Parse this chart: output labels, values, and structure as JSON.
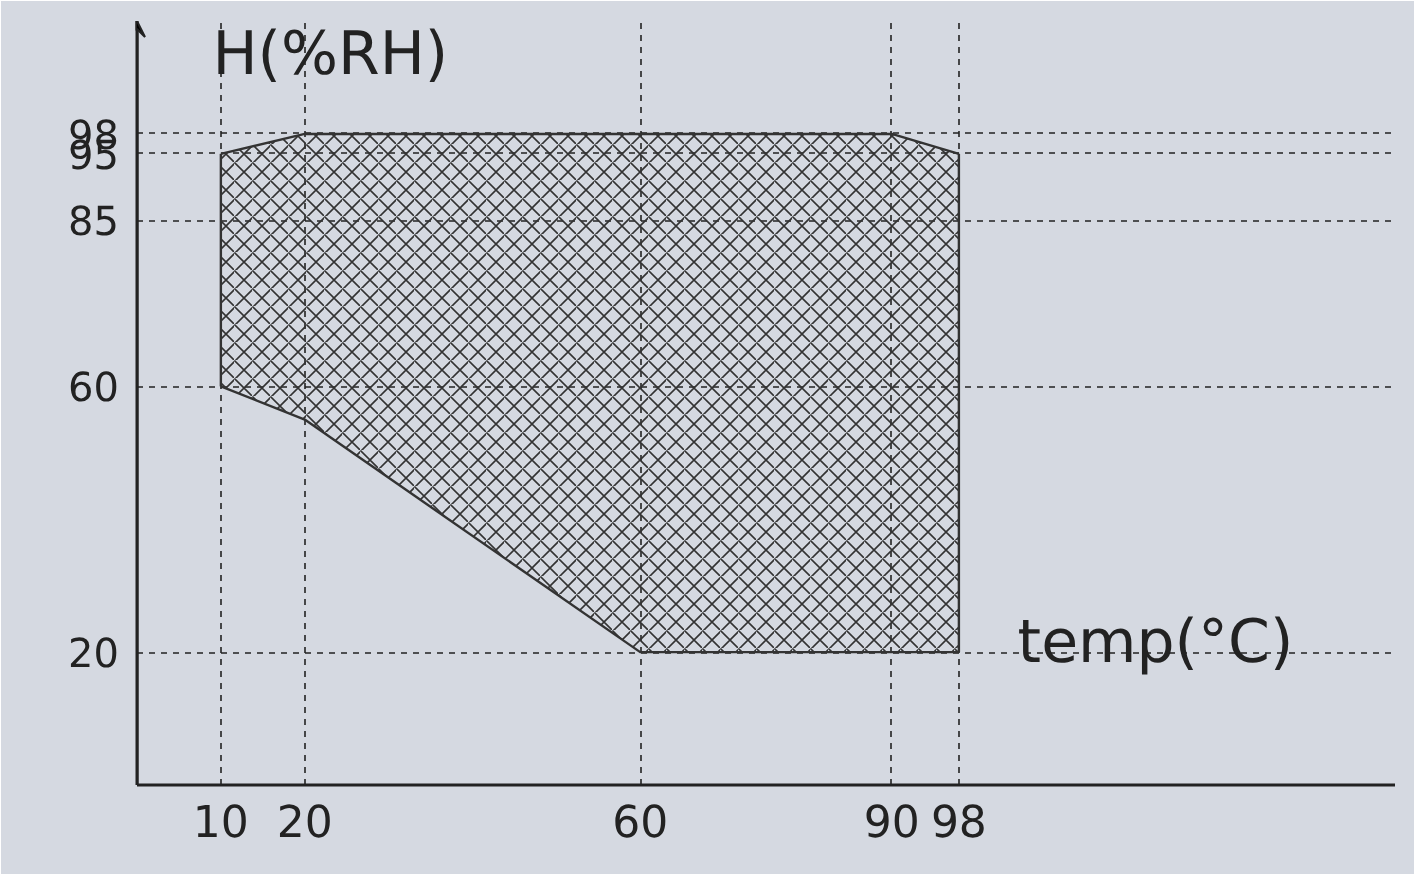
{
  "chart_data": {
    "type": "line",
    "xlabel": "temp(°C)",
    "ylabel": "H(%RH)",
    "x": [
      10,
      20,
      60,
      90,
      98
    ],
    "series": [
      {
        "color": "#333333",
        "values": [
          95,
          98,
          98,
          98,
          95
        ],
        "upper": [
          95,
          98,
          98,
          98,
          95
        ],
        "lower": [
          60,
          55,
          20,
          20,
          20
        ]
      }
    ],
    "xlim": [
      0,
      150
    ],
    "ylim": [
      0,
      115
    ],
    "xticks": [
      10,
      20,
      60,
      90,
      98
    ],
    "yticks": [
      20,
      60,
      85,
      95,
      98
    ],
    "grid": true
  }
}
